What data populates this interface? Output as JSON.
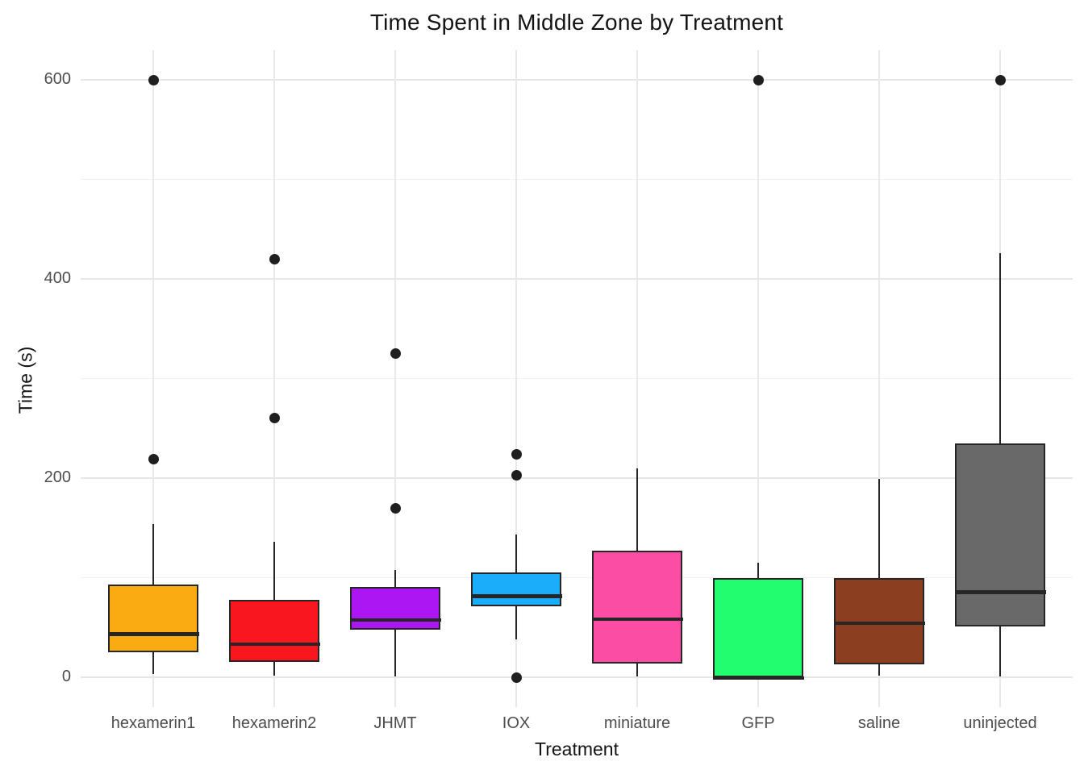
{
  "chart_data": {
    "type": "boxplot",
    "title": "Time Spent in Middle Zone by Treatment",
    "xlabel": "Treatment",
    "ylabel": "Time (s)",
    "ylim": [
      0,
      600
    ],
    "yticks": [
      0,
      200,
      400,
      600
    ],
    "yminor_gridlines": [
      100,
      300,
      500
    ],
    "grid": "on",
    "legend": "none",
    "categories": [
      "hexamerin1",
      "hexamerin2",
      "JHMT",
      "IOX",
      "miniature",
      "GFP",
      "saline",
      "uninjected"
    ],
    "groups": [
      {
        "label": "hexamerin1",
        "color": "#FAAB12",
        "whisker_min": 3,
        "q1": 25,
        "median": 45,
        "q3": 93,
        "whisker_max": 154,
        "outliers": [
          219,
          600
        ]
      },
      {
        "label": "hexamerin2",
        "color": "#F9161F",
        "whisker_min": 2,
        "q1": 15,
        "median": 35,
        "q3": 78,
        "whisker_max": 136,
        "outliers": [
          260,
          420
        ]
      },
      {
        "label": "JHMT",
        "color": "#AC16F2",
        "whisker_min": 1,
        "q1": 48,
        "median": 59,
        "q3": 91,
        "whisker_max": 108,
        "outliers": [
          170,
          325
        ]
      },
      {
        "label": "IOX",
        "color": "#1CADFA",
        "whisker_min": 38,
        "q1": 71,
        "median": 83,
        "q3": 105,
        "whisker_max": 143,
        "outliers": [
          0,
          203,
          224
        ]
      },
      {
        "label": "miniature",
        "color": "#FC4DA5",
        "whisker_min": 1,
        "q1": 14,
        "median": 60,
        "q3": 127,
        "whisker_max": 210,
        "outliers": []
      },
      {
        "label": "GFP",
        "color": "#21FD6E",
        "whisker_min": 0,
        "q1": 0,
        "median": 1,
        "q3": 100,
        "whisker_max": 115,
        "outliers": [
          600
        ]
      },
      {
        "label": "saline",
        "color": "#8C3F20",
        "whisker_min": 2,
        "q1": 13,
        "median": 56,
        "q3": 100,
        "whisker_max": 199,
        "outliers": []
      },
      {
        "label": "uninjected",
        "color": "#696969",
        "whisker_min": 1,
        "q1": 51,
        "median": 87,
        "q3": 235,
        "whisker_max": 426,
        "outliers": [
          600
        ]
      }
    ],
    "style_colors": {
      "box_border": "#262626",
      "median_line": "#262626",
      "outlier_dot": "#1f1f1f",
      "major_grid": "#e6e6e6",
      "minor_grid": "#f1f1f1",
      "tick_text": "#4d4d4d",
      "title_text": "#141414",
      "background": "#ffffff"
    }
  }
}
